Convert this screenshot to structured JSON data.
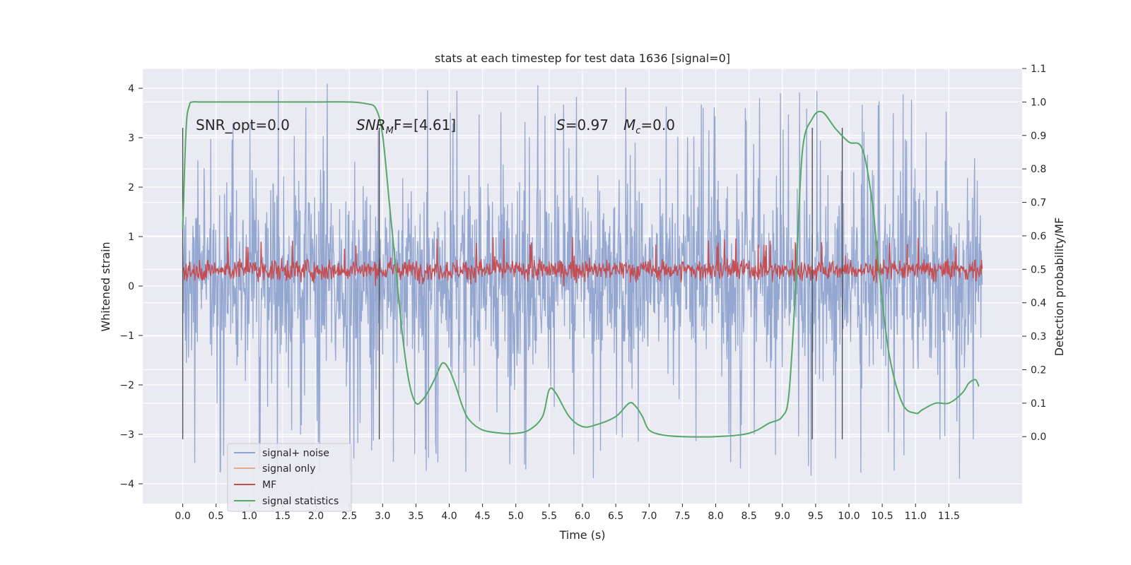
{
  "chart_data": {
    "type": "line",
    "title": "stats at each timestep for test data 1636 [signal=0]",
    "xlabel": "Time (s)",
    "ylabel": "Whitened strain",
    "ylabel_right": "Detection probability/MF",
    "xlim": [
      -0.6,
      12.6
    ],
    "ylim": [
      -4.4,
      4.4
    ],
    "ylim_right": [
      -0.2,
      1.1
    ],
    "x_ticks": [
      "0.0",
      "0.5",
      "1.0",
      "1.5",
      "2.0",
      "2.5",
      "3.0",
      "3.5",
      "4.0",
      "4.5",
      "5.0",
      "5.5",
      "6.0",
      "6.5",
      "7.0",
      "7.5",
      "8.0",
      "8.5",
      "9.0",
      "9.5",
      "10.0",
      "10.5",
      "11.0",
      "11.5"
    ],
    "y_ticks": [
      "4",
      "3",
      "2",
      "1",
      "0",
      "−1",
      "−2",
      "−3",
      "−4"
    ],
    "y_ticks_right": [
      "1.1",
      "1.0",
      "0.9",
      "0.8",
      "0.7",
      "0.6",
      "0.5",
      "0.4",
      "0.3",
      "0.2",
      "0.1",
      "0.0"
    ],
    "grid": true,
    "legend_position": "lower-left",
    "annotations": {
      "snr_opt": "SNR_opt=0.0",
      "snr_mf_main": "SNR",
      "snr_mf_sub": "M",
      "snr_mf_rest": "F=[4.61]",
      "s_main": "S",
      "s_rest": "=0.97",
      "mc_main": "M",
      "mc_sub": "c",
      "mc_rest": "=0.0"
    },
    "vertical_markers_s": [
      0.0,
      2.95,
      9.45,
      9.9
    ],
    "series": [
      {
        "name": "signal+ noise",
        "color": "#8fa3cf",
        "style": "noise",
        "x_range": [
          0.0,
          12.0
        ],
        "value_range": [
          -3.9,
          4.1
        ],
        "typical_envelope": [
          -2.2,
          2.6
        ]
      },
      {
        "name": "signal only",
        "color": "#e8a98c",
        "values": []
      },
      {
        "name": "MF",
        "color": "#c44e52",
        "style": "noise",
        "x_range": [
          0.0,
          12.0
        ],
        "value_range": [
          0.0,
          1.0
        ],
        "typical_envelope": [
          0.05,
          0.6
        ]
      },
      {
        "name": "signal statistics",
        "color": "#55a868",
        "axis": "right",
        "x": [
          0.0,
          0.05,
          0.1,
          0.15,
          0.3,
          1.0,
          2.0,
          2.5,
          2.75,
          2.9,
          3.0,
          3.1,
          3.2,
          3.3,
          3.4,
          3.5,
          3.6,
          3.7,
          3.8,
          3.9,
          4.0,
          4.1,
          4.2,
          4.3,
          4.5,
          4.8,
          5.0,
          5.2,
          5.4,
          5.5,
          5.6,
          5.8,
          6.0,
          6.2,
          6.5,
          6.7,
          6.8,
          6.9,
          7.0,
          7.2,
          7.5,
          8.0,
          8.5,
          8.8,
          9.0,
          9.1,
          9.2,
          9.3,
          9.45,
          9.6,
          9.8,
          10.0,
          10.2,
          10.35,
          10.45,
          10.6,
          10.8,
          11.0,
          11.1,
          11.3,
          11.5,
          11.7,
          11.8,
          11.9,
          11.95
        ],
        "y": [
          0.62,
          0.92,
          0.99,
          1.0,
          1.0,
          1.0,
          1.0,
          1.0,
          0.995,
          0.98,
          0.9,
          0.7,
          0.5,
          0.3,
          0.16,
          0.1,
          0.11,
          0.14,
          0.18,
          0.22,
          0.2,
          0.15,
          0.09,
          0.05,
          0.02,
          0.01,
          0.01,
          0.02,
          0.06,
          0.14,
          0.13,
          0.06,
          0.03,
          0.035,
          0.06,
          0.1,
          0.09,
          0.06,
          0.02,
          0.005,
          0.0,
          0.0,
          0.01,
          0.04,
          0.06,
          0.13,
          0.45,
          0.85,
          0.95,
          0.97,
          0.92,
          0.88,
          0.86,
          0.7,
          0.5,
          0.25,
          0.1,
          0.07,
          0.08,
          0.1,
          0.1,
          0.13,
          0.16,
          0.17,
          0.15
        ]
      }
    ]
  }
}
